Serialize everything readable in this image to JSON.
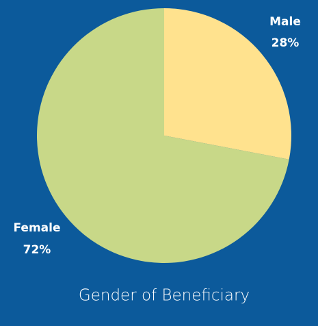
{
  "chart_data": {
    "type": "pie",
    "title": "Gender of Beneficiary",
    "categories": [
      "Male",
      "Female"
    ],
    "values": [
      28,
      72
    ],
    "value_labels": [
      "28%",
      "72%"
    ],
    "colors": [
      "#ffe28e",
      "#c8d888"
    ]
  }
}
